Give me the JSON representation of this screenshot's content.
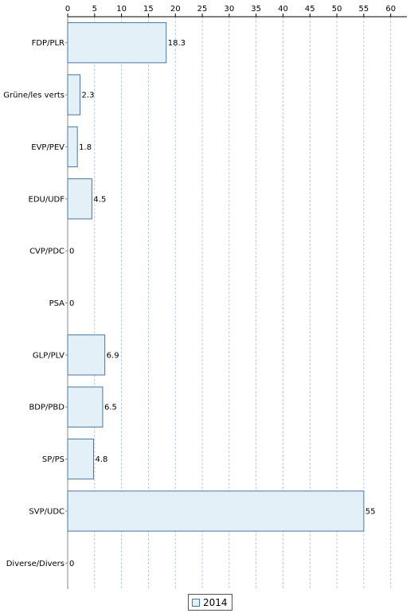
{
  "chart_data": {
    "type": "bar",
    "orientation": "horizontal",
    "categories": [
      "FDP/PLR",
      "Grüne/les verts",
      "EVP/PEV",
      "EDU/UDF",
      "CVP/PDC",
      "PSA",
      "GLP/PLV",
      "BDP/PBD",
      "SP/PS",
      "SVP/UDC",
      "Diverse/Divers"
    ],
    "series": [
      {
        "name": "2014",
        "values": [
          18.3,
          2.3,
          1.8,
          4.5,
          0,
          0,
          6.9,
          6.5,
          4.8,
          55,
          0
        ],
        "labels": [
          "18.3",
          "2.3",
          "1.8",
          "4.5",
          "0",
          "0",
          "6.9",
          "6.5",
          "4.8",
          "55",
          "0"
        ]
      }
    ],
    "xlim": [
      0,
      63
    ],
    "xticks": [
      0,
      5,
      10,
      15,
      20,
      25,
      30,
      35,
      40,
      45,
      50,
      55,
      60
    ],
    "axis_position": "top",
    "grid": "vertical dashed",
    "legend": "bottom-center",
    "colors": {
      "bar_fill": "#e4f0f8",
      "bar_stroke": "#4a76a0",
      "grid": "#a9bdd6",
      "axis": "#000000"
    }
  }
}
